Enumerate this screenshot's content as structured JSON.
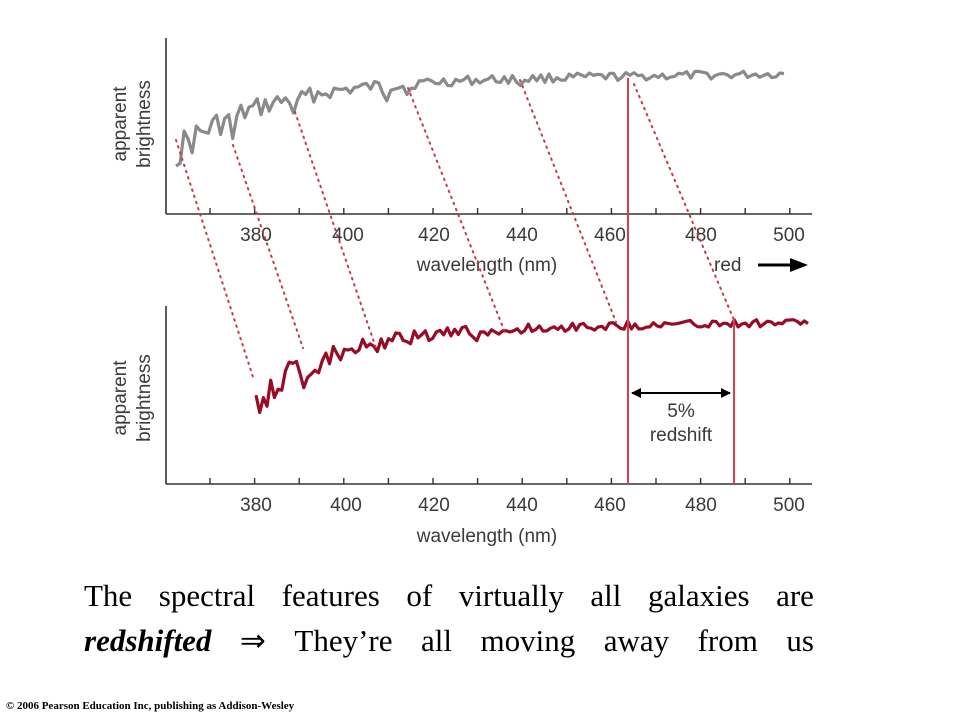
{
  "top_panel": {
    "ylabel_line1": "apparent",
    "ylabel_line2": "brightness",
    "xlabel": "wavelength (nm)",
    "direction_label": "red",
    "x_ticks": [
      "380",
      "400",
      "420",
      "440",
      "460",
      "480",
      "500"
    ]
  },
  "bottom_panel": {
    "ylabel_line1": "apparent",
    "ylabel_line2": "brightness",
    "xlabel": "wavelength (nm)",
    "x_ticks": [
      "380",
      "400",
      "420",
      "440",
      "460",
      "480",
      "500"
    ]
  },
  "shift_annotation": {
    "line1": "5%",
    "line2": "redshift",
    "rest_wavelength_nm": 464,
    "shifted_wavelength_nm": 488
  },
  "colors": {
    "rest_spectrum": "#8a8a8a",
    "redshifted_spectrum": "#990b25",
    "marker_line": "#d4404f",
    "dotted_connector": "#c8384a",
    "axes": "#333333"
  },
  "caption": {
    "line1_words": [
      "The",
      "spectral",
      "features",
      "of",
      "virtually",
      "all",
      "galaxies",
      "are"
    ],
    "line2_emphasis": "redshifted",
    "line2_arrow": "⇒",
    "line2_words": [
      "They’re",
      "all",
      "moving",
      "away",
      "from",
      "us"
    ]
  },
  "copyright": "© 2006 Pearson Education Inc, publishing as Addison-Wesley"
}
